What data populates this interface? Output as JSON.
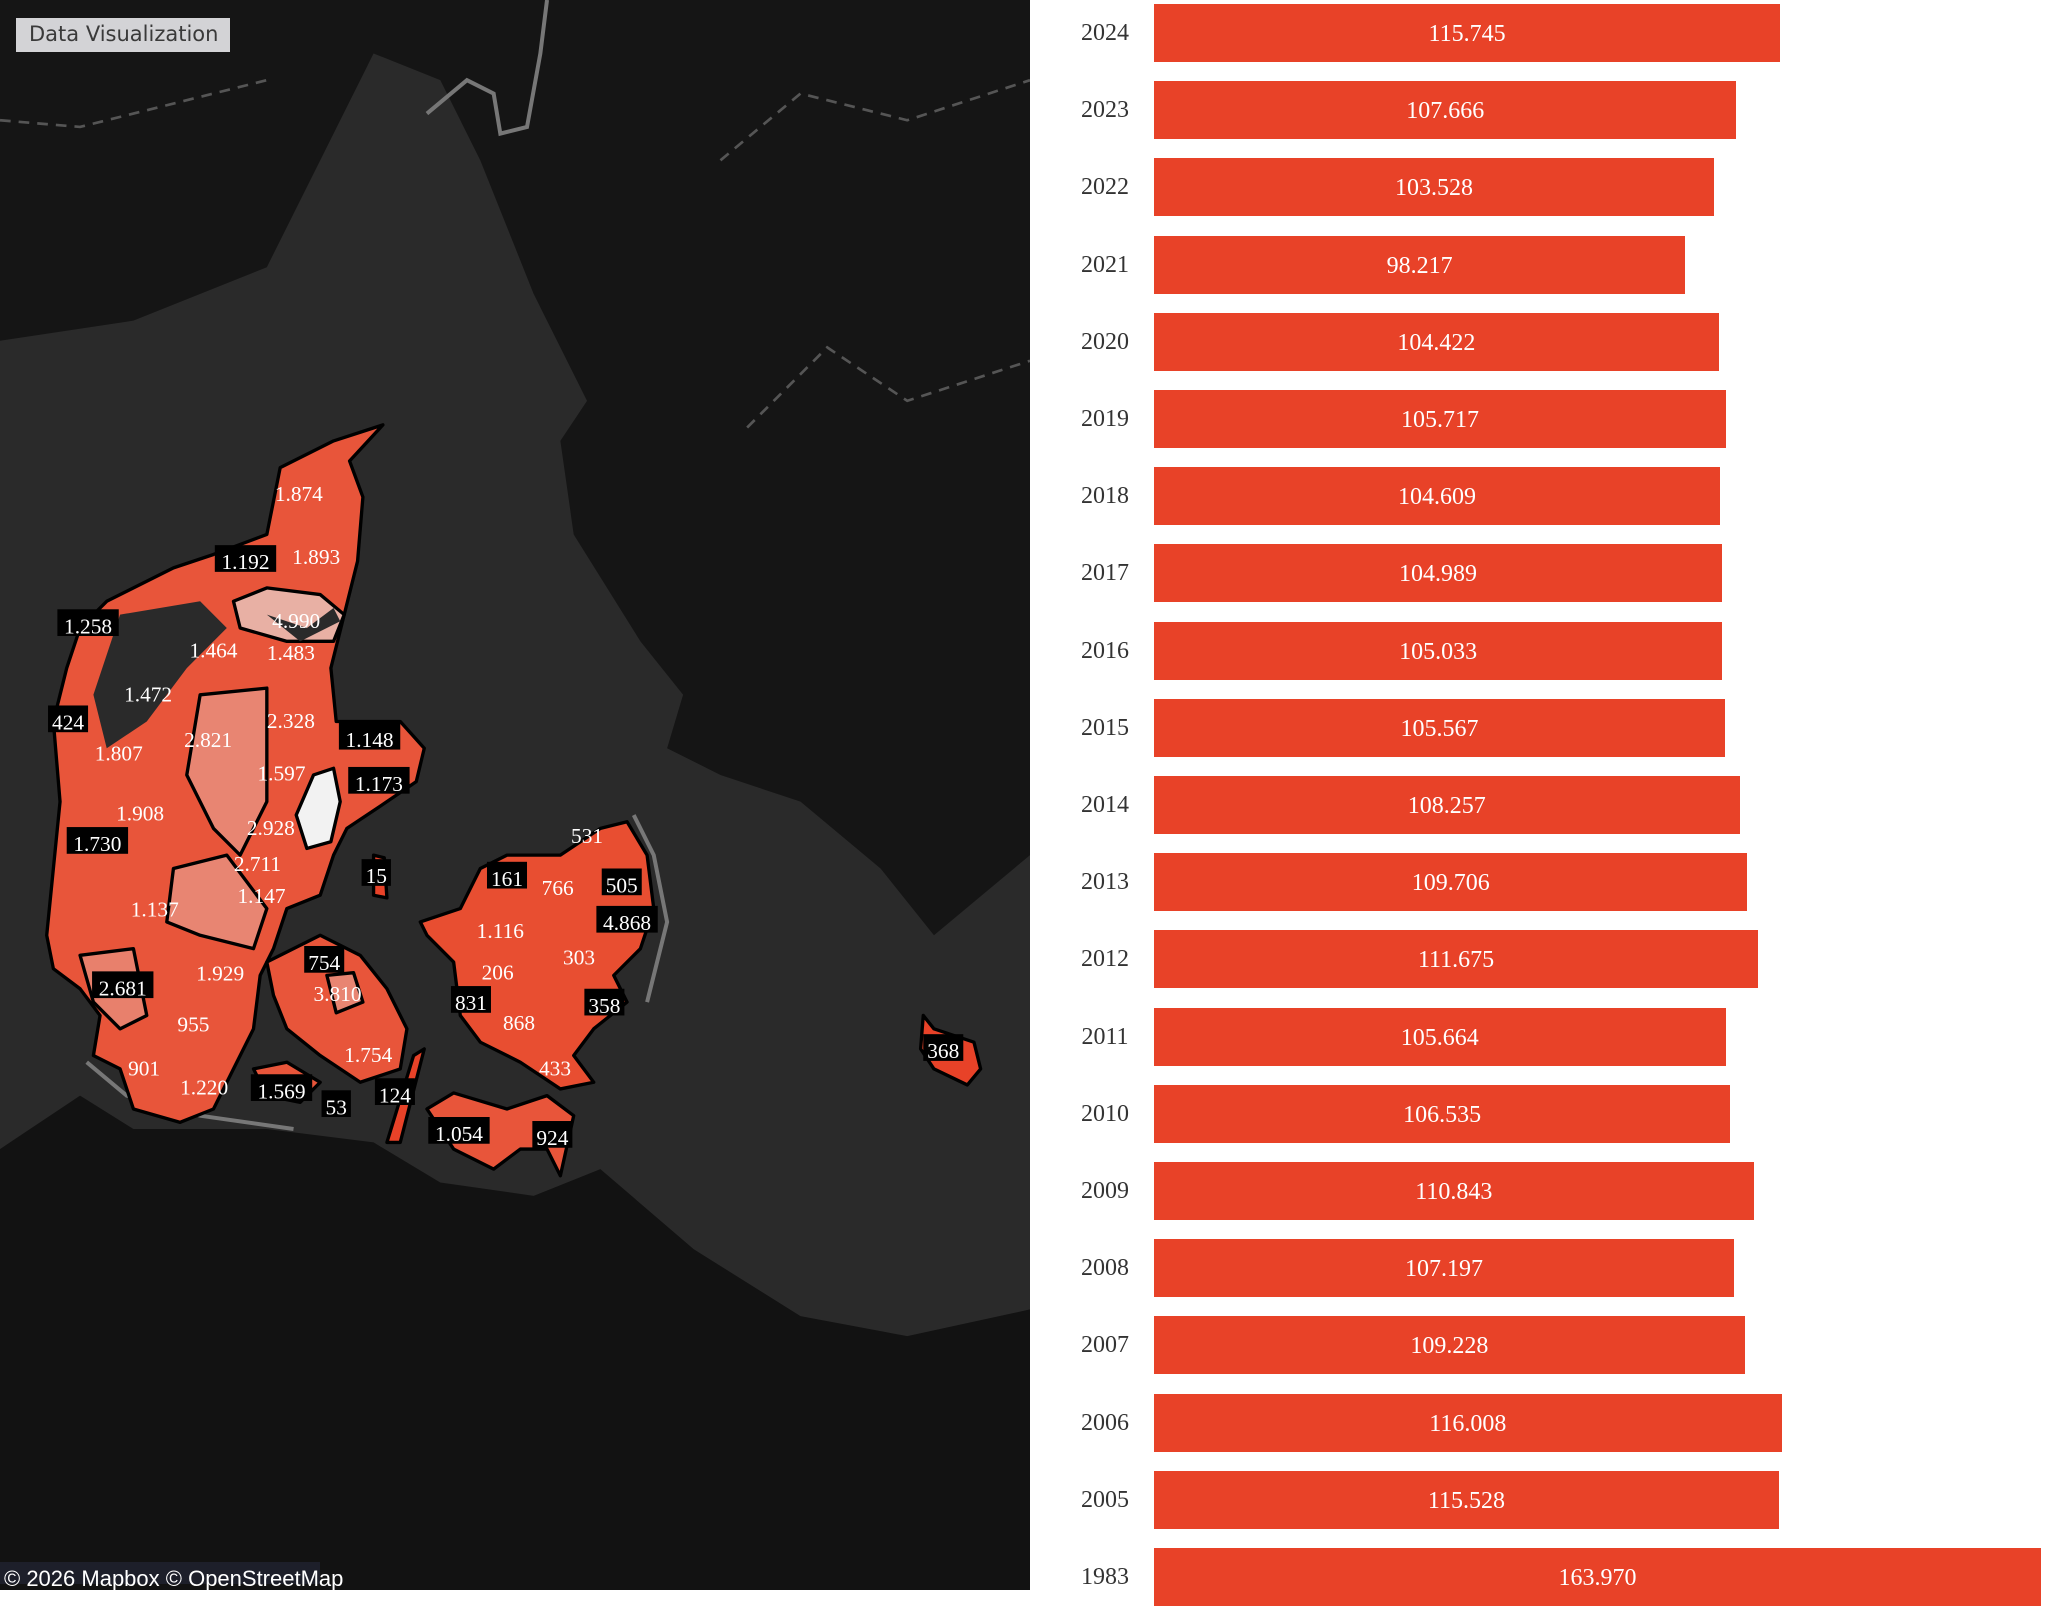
{
  "app": {
    "badge": "Data Visualization",
    "attribution": "© 2026 Mapbox © OpenStreetMap"
  },
  "colors": {
    "bar": "#e84228",
    "sea": "#2a2a2a",
    "land": "#141414",
    "region_high": "#e8b0a4",
    "region_max": "#f2f2f2"
  },
  "map_labels": [
    "1.874",
    "1.192",
    "1.893",
    "1.258",
    "4.990",
    "1.464",
    "1.483",
    "1.472",
    "424",
    "2.821",
    "2.328",
    "1.148",
    "1.807",
    "1.597",
    "1.173",
    "1.908",
    "2.928",
    "1.730",
    "2.711",
    "15",
    "1.147",
    "1.137",
    "754",
    "1.929",
    "2.681",
    "3.810",
    "955",
    "1.754",
    "901",
    "1.220",
    "1.569",
    "53",
    "124",
    "531",
    "161",
    "766",
    "505",
    "4.868",
    "1.116",
    "303",
    "206",
    "831",
    "358",
    "868",
    "433",
    "1.054",
    "924",
    "368"
  ],
  "chart_data": {
    "type": "bar",
    "orientation": "horizontal",
    "categories": [
      "2024",
      "2023",
      "2022",
      "2021",
      "2020",
      "2019",
      "2018",
      "2017",
      "2016",
      "2015",
      "2014",
      "2013",
      "2012",
      "2011",
      "2010",
      "2009",
      "2008",
      "2007",
      "2006",
      "2005",
      "1983"
    ],
    "values": [
      115.745,
      107.666,
      103.528,
      98.217,
      104.422,
      105.717,
      104.609,
      104.989,
      105.033,
      105.567,
      108.257,
      109.706,
      111.675,
      105.664,
      106.535,
      110.843,
      107.197,
      109.228,
      116.008,
      115.528,
      163.97
    ],
    "labels": [
      "115.745",
      "107.666",
      "103.528",
      "98.217",
      "104.422",
      "105.717",
      "104.609",
      "104.989",
      "105.033",
      "105.567",
      "108.257",
      "109.706",
      "111.675",
      "105.664",
      "106.535",
      "110.843",
      "107.197",
      "109.228",
      "116.008",
      "115.528",
      "163.970"
    ],
    "xlim": [
      0,
      163.97
    ]
  }
}
